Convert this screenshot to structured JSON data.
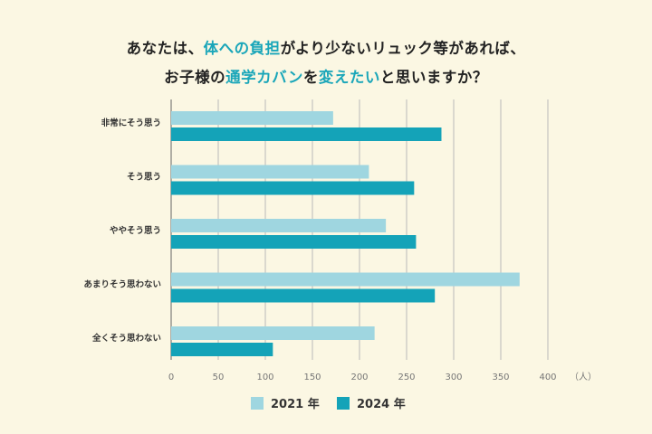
{
  "title": {
    "line1": [
      {
        "text": "あなたは、",
        "hl": false
      },
      {
        "text": "体への負担",
        "hl": true
      },
      {
        "text": "がより少ないリュック等があれば、",
        "hl": false
      }
    ],
    "line2": [
      {
        "text": "お子様の",
        "hl": false
      },
      {
        "text": "通学カバン",
        "hl": true
      },
      {
        "text": "を",
        "hl": false
      },
      {
        "text": "変えたい",
        "hl": true
      },
      {
        "text": "と思いますか？",
        "hl": false
      }
    ]
  },
  "colors": {
    "background": "#fbf7e3",
    "highlight": "#1aa6b9",
    "series_2021": "#9fd6e0",
    "series_2024": "#14a3b8",
    "grid": "#b9b9b9",
    "axis": "#666666"
  },
  "chart_data": {
    "type": "bar",
    "orientation": "horizontal",
    "categories": [
      "非常にそう思う",
      "そう思う",
      "ややそう思う",
      "あまりそう思わない",
      "全くそう思わない"
    ],
    "series": [
      {
        "name": "2021 年",
        "values": [
          172,
          210,
          228,
          370,
          216
        ]
      },
      {
        "name": "2024 年",
        "values": [
          287,
          258,
          260,
          280,
          108
        ]
      }
    ],
    "xlim": [
      0,
      400
    ],
    "xticks": [
      0,
      50,
      100,
      150,
      200,
      250,
      300,
      350,
      400
    ],
    "xunit": "（人）",
    "grid": true,
    "legend_position": "bottom"
  }
}
